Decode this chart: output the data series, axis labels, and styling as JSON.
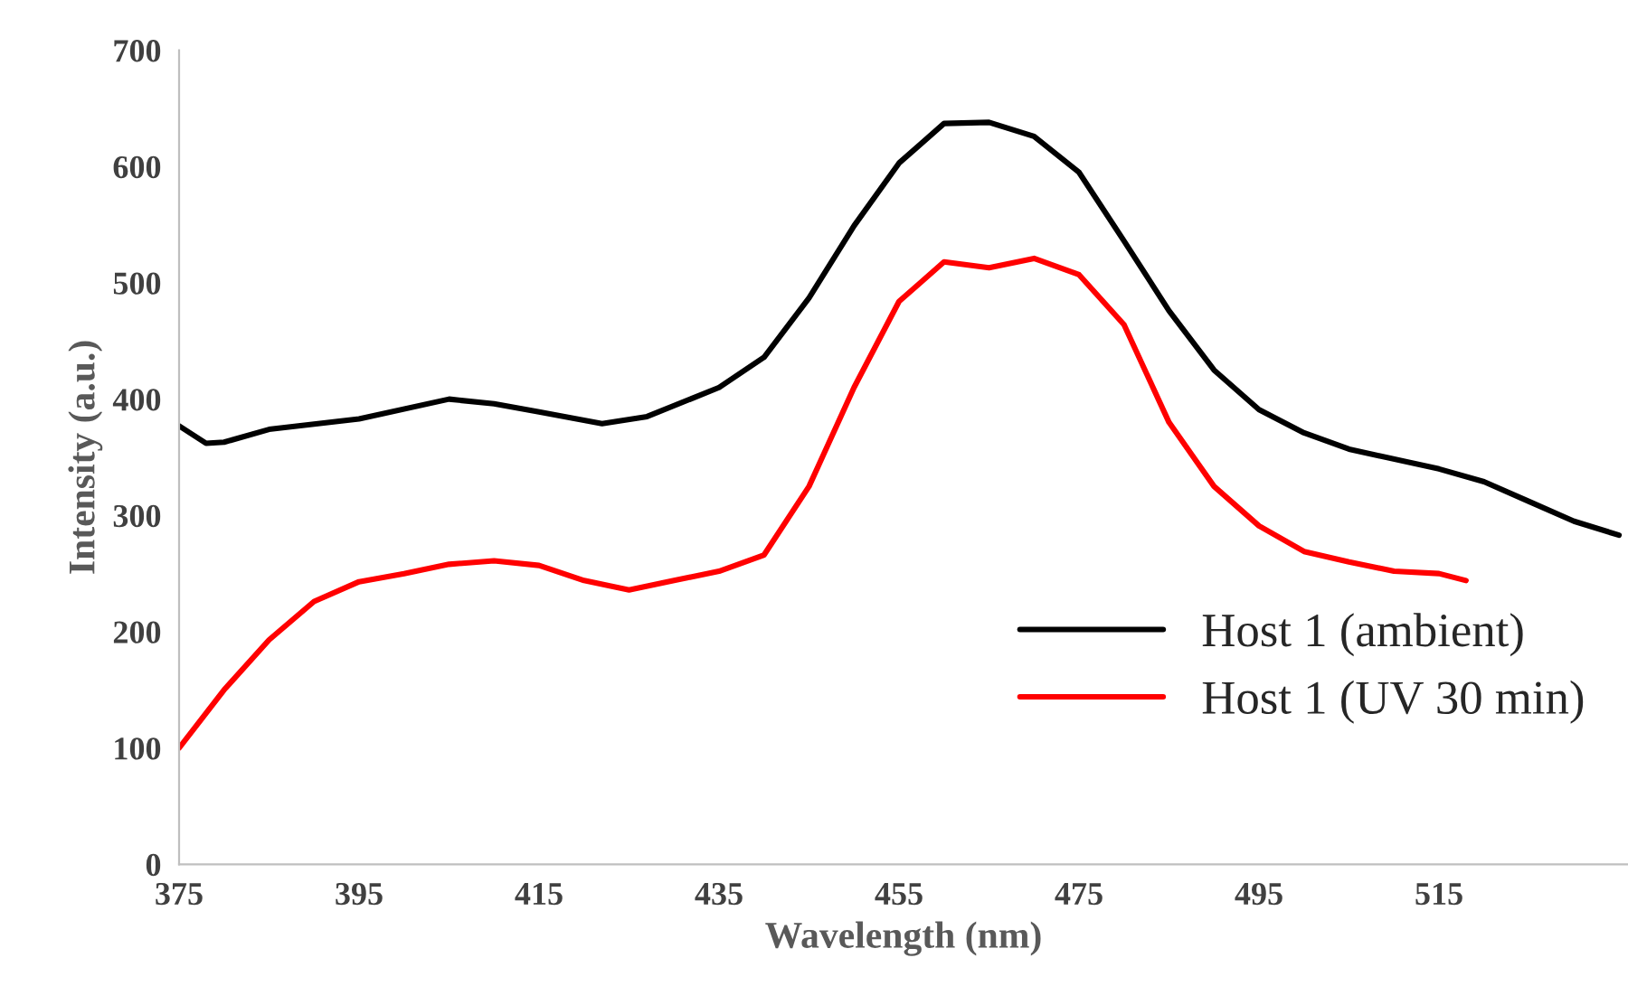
{
  "chart_data": {
    "type": "line",
    "xlabel": "Wavelength (nm)",
    "ylabel": "Intensity (a.u.)",
    "xlim": [
      375,
      536
    ],
    "ylim": [
      0,
      700
    ],
    "xticks": [
      375,
      395,
      415,
      435,
      455,
      475,
      495,
      515
    ],
    "yticks": [
      0,
      100,
      200,
      300,
      400,
      500,
      600,
      700
    ],
    "grid": false,
    "legend": "bottom right",
    "marker": "none",
    "line_style": "solid",
    "series": [
      {
        "name": "Host 1 (ambient)",
        "color": "#000000",
        "x": [
          375,
          378,
          380,
          385,
          395,
          405,
          410,
          415,
          422,
          427,
          435,
          440,
          445,
          450,
          455,
          460,
          465,
          470,
          475,
          480,
          485,
          490,
          495,
          500,
          505,
          515,
          520,
          525,
          530,
          535
        ],
        "values": [
          377,
          362,
          363,
          374,
          383,
          400,
          396,
          389,
          379,
          385,
          410,
          436,
          487,
          549,
          603,
          637,
          638,
          626,
          595,
          536,
          476,
          425,
          391,
          371,
          357,
          340,
          329,
          312,
          295,
          283
        ]
      },
      {
        "name": "Host 1 (UV 30 min)",
        "color": "#ff0000",
        "x": [
          375,
          380,
          385,
          390,
          395,
          400,
          405,
          410,
          415,
          420,
          425,
          430,
          435,
          440,
          445,
          450,
          455,
          460,
          465,
          470,
          475,
          480,
          485,
          490,
          495,
          500,
          505,
          510,
          515,
          518
        ],
        "values": [
          100,
          150,
          193,
          226,
          243,
          250,
          258,
          261,
          257,
          244,
          236,
          244,
          252,
          266,
          325,
          410,
          484,
          518,
          513,
          521,
          507,
          464,
          380,
          325,
          291,
          269,
          260,
          252,
          250,
          244
        ]
      }
    ]
  }
}
